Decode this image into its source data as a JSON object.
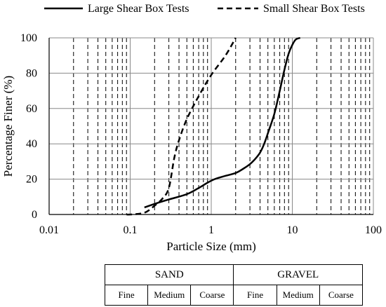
{
  "chart_data": {
    "type": "line",
    "xlabel": "Particle Size (mm)",
    "ylabel": "Percentage Finer (%)",
    "xscale": "log",
    "xlim": [
      0.01,
      100
    ],
    "ylim": [
      0,
      100
    ],
    "x_tick_labels": [
      "0.01",
      "0.1",
      "1",
      "10",
      "100"
    ],
    "y_tick_labels": [
      "0",
      "20",
      "40",
      "60",
      "80",
      "100"
    ],
    "y_ticks": [
      0,
      20,
      40,
      60,
      80,
      100
    ],
    "grid": "major horizontal solid, major vertical solid, minor vertical dashed",
    "legend_position": "top",
    "series": [
      {
        "name": "Large Shear Box Tests",
        "style": "solid",
        "x": [
          0.15,
          0.2,
          0.3,
          0.5,
          0.7,
          0.9,
          1.1,
          1.4,
          2,
          2.5,
          3,
          3.5,
          4,
          4.5,
          5,
          6,
          7,
          8,
          9,
          10,
          11,
          12.5
        ],
        "y": [
          4,
          6,
          8.5,
          11.5,
          15,
          18,
          20,
          21.5,
          23.5,
          26,
          28.5,
          31.5,
          35,
          40,
          46,
          57,
          70,
          82,
          91,
          96,
          99,
          100
        ]
      },
      {
        "name": "Small Shear Box Tests",
        "style": "dashed",
        "x": [
          0.09,
          0.1,
          0.15,
          0.2,
          0.25,
          0.3,
          0.35,
          0.4,
          0.5,
          0.7,
          1,
          1.5,
          2
        ],
        "y": [
          0,
          0,
          1,
          5,
          9,
          15,
          32,
          42,
          54,
          67,
          79,
          90,
          100
        ]
      }
    ]
  },
  "soil_table": {
    "groups": [
      "SAND",
      "GRAVEL"
    ],
    "sub_labels": [
      "Fine",
      "Medium",
      "Coarse",
      "Fine",
      "Medium",
      "Coarse"
    ]
  }
}
